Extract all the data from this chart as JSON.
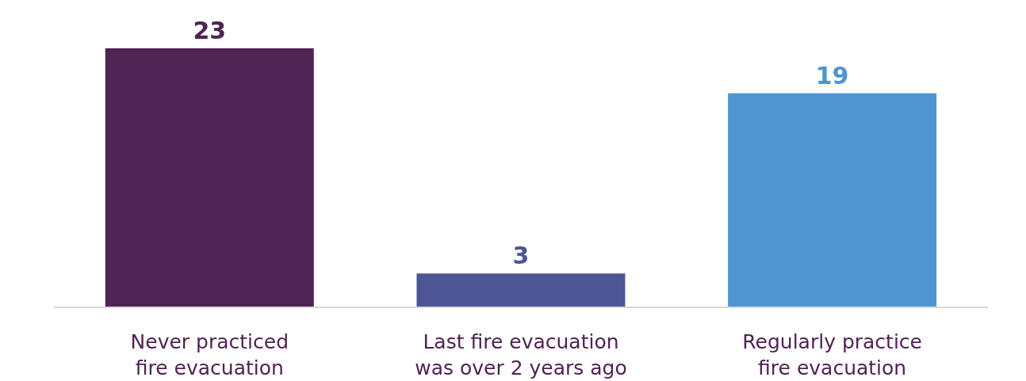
{
  "chart_data": {
    "type": "bar",
    "categories": [
      "Never practiced fire evacuation",
      "Last fire evacuation was over 2 years ago",
      "Regularly practice fire evacuation"
    ],
    "values": [
      23,
      3,
      19
    ],
    "colors": [
      "#4f2353",
      "#4e5594",
      "#4f95d1"
    ],
    "data_labels": true
  }
}
